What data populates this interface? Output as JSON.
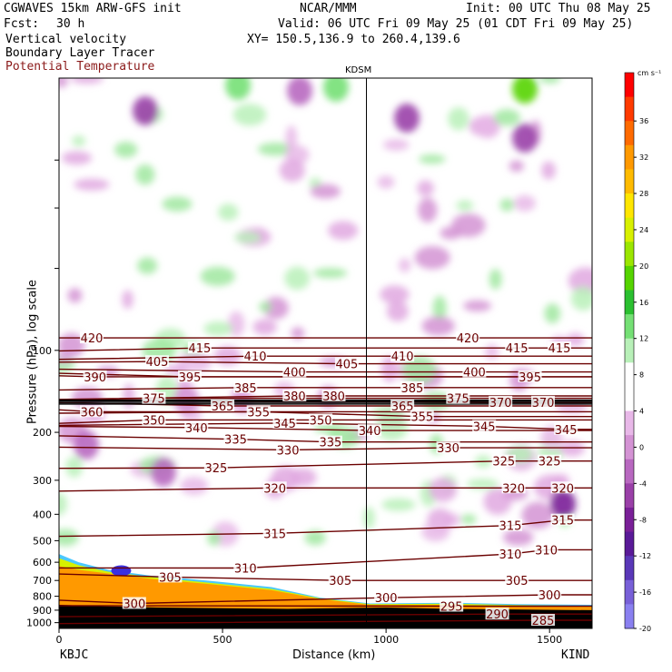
{
  "header": {
    "model": "CGWAVES 15km ARW-GFS init",
    "org": "NCAR/MMM",
    "init": "Init: 00 UTC Thu 08 May 25",
    "fcst_label": "Fcst:",
    "fcst_value": "30 h",
    "valid": "Valid: 06 UTC Fri 09 May 25 (01 CDT Fri 09 May 25)",
    "field1": "Vertical velocity",
    "xy": "XY= 150.5,136.9 to 260.4,139.6",
    "field2": "Boundary Layer Tracer",
    "field3": "Potential Temperature",
    "field3_color": "#8b1a1a"
  },
  "station_top": "KDSM",
  "x_left_station": "KBJC",
  "x_right_station": "KIND",
  "colorbar": {
    "unit": "cm s⁻¹",
    "tick_labels": [
      "36",
      "32",
      "28",
      "24",
      "20",
      "16",
      "12",
      "8",
      "4",
      "0",
      "-4",
      "-8",
      "-12",
      "-16",
      "-20"
    ],
    "colors": [
      "#ff0000",
      "#ff3a00",
      "#ff6a00",
      "#ff9900",
      "#ffbb00",
      "#ffe600",
      "#d8f000",
      "#9be600",
      "#55d400",
      "#2bc030",
      "#75e075",
      "#b8f0b8",
      "#ffffff",
      "#ffffff",
      "#e8b8e8",
      "#d493d4",
      "#b868c0",
      "#9a40a8",
      "#7a2098",
      "#5a1a98",
      "#5a38b8",
      "#7860d8",
      "#8a80f0"
    ]
  },
  "chart_data": {
    "type": "contour-cross-section",
    "xlabel": "Distance (km)",
    "ylabel": "Pressure (hPa), log scale",
    "x_ticks": [
      0,
      500,
      1000,
      1500
    ],
    "x_range": [
      0,
      1630
    ],
    "y_ticks": [
      100,
      200,
      300,
      400,
      500,
      600,
      700,
      800,
      900,
      1000
    ],
    "y_range": [
      10,
      1050
    ],
    "y_scale": "log",
    "marker_x": 940,
    "marker_label": "KDSM",
    "isentrope_color": "#6b0000",
    "isentropes": [
      {
        "theta": 420,
        "labels": [
          [
            100,
            90
          ],
          [
            1250,
            90
          ]
        ]
      },
      {
        "theta": 415,
        "labels": [
          [
            430,
            98
          ],
          [
            1400,
            98
          ],
          [
            1530,
            98
          ]
        ]
      },
      {
        "theta": 410,
        "labels": [
          [
            600,
            105
          ],
          [
            1050,
            105
          ]
        ]
      },
      {
        "theta": 405,
        "labels": [
          [
            300,
            110
          ],
          [
            880,
            112
          ]
        ]
      },
      {
        "theta": 400,
        "labels": [
          [
            720,
            120
          ],
          [
            1270,
            120
          ]
        ]
      },
      {
        "theta": 395,
        "labels": [
          [
            400,
            125
          ],
          [
            1440,
            125
          ]
        ]
      },
      {
        "theta": 390,
        "labels": [
          [
            110,
            125
          ]
        ]
      },
      {
        "theta": 385,
        "labels": [
          [
            570,
            137
          ],
          [
            1080,
            137
          ]
        ]
      },
      {
        "theta": 380,
        "labels": [
          [
            720,
            147
          ],
          [
            840,
            147
          ]
        ]
      },
      {
        "theta": 375,
        "labels": [
          [
            290,
            150
          ],
          [
            1220,
            150
          ]
        ]
      },
      {
        "theta": 370,
        "labels": [
          [
            1350,
            155
          ],
          [
            1480,
            155
          ]
        ]
      },
      {
        "theta": 365,
        "labels": [
          [
            500,
            160
          ],
          [
            1050,
            160
          ]
        ]
      },
      {
        "theta": 360,
        "labels": [
          [
            100,
            168
          ]
        ]
      },
      {
        "theta": 355,
        "labels": [
          [
            610,
            168
          ],
          [
            1110,
            175
          ]
        ]
      },
      {
        "theta": 350,
        "labels": [
          [
            290,
            180
          ],
          [
            800,
            180
          ]
        ]
      },
      {
        "theta": 345,
        "labels": [
          [
            690,
            185
          ],
          [
            1300,
            190
          ],
          [
            1550,
            195
          ]
        ]
      },
      {
        "theta": 340,
        "labels": [
          [
            420,
            192
          ],
          [
            950,
            197
          ]
        ]
      },
      {
        "theta": 335,
        "labels": [
          [
            540,
            212
          ],
          [
            830,
            217
          ]
        ]
      },
      {
        "theta": 330,
        "labels": [
          [
            700,
            232
          ],
          [
            1190,
            228
          ]
        ]
      },
      {
        "theta": 325,
        "labels": [
          [
            480,
            270
          ],
          [
            1360,
            255
          ],
          [
            1500,
            255
          ]
        ]
      },
      {
        "theta": 320,
        "labels": [
          [
            660,
            320
          ],
          [
            1390,
            320
          ],
          [
            1540,
            320
          ]
        ]
      },
      {
        "theta": 315,
        "labels": [
          [
            660,
            470
          ],
          [
            1380,
            440
          ],
          [
            1540,
            420
          ]
        ]
      },
      {
        "theta": 310,
        "labels": [
          [
            570,
            630
          ],
          [
            1380,
            560
          ],
          [
            1490,
            540
          ]
        ]
      },
      {
        "theta": 305,
        "labels": [
          [
            340,
            680
          ],
          [
            860,
            700
          ],
          [
            1400,
            700
          ]
        ]
      },
      {
        "theta": 300,
        "labels": [
          [
            230,
            850
          ],
          [
            1000,
            810
          ],
          [
            1500,
            790
          ]
        ]
      },
      {
        "theta": 295,
        "labels": [
          [
            1200,
            870
          ]
        ]
      },
      {
        "theta": 290,
        "labels": [
          [
            1340,
            930
          ]
        ]
      },
      {
        "theta": 285,
        "labels": [
          [
            1480,
            980
          ]
        ]
      }
    ]
  }
}
